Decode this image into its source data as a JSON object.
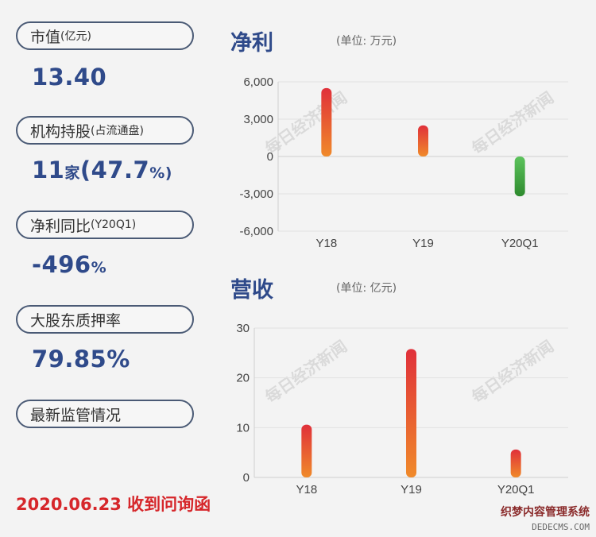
{
  "indicators": [
    {
      "label_main": "市值",
      "label_sub": "(亿元)",
      "value_main": "13.40",
      "value_unit": ""
    },
    {
      "label_main": "机构持股",
      "label_sub": "(占流通盘)",
      "value_main": "11",
      "value_unit": "家",
      "value_rest": "(47.7",
      "value_unit2": "%)"
    },
    {
      "label_main": "净利同比",
      "label_sub": "(Y20Q1)",
      "value_main": "-496",
      "value_unit": "%"
    },
    {
      "label_main": "大股东质押率",
      "label_sub": "",
      "value_main": "79.85%",
      "value_unit": ""
    },
    {
      "label_main": "最新监管情况",
      "label_sub": ""
    }
  ],
  "regulatory": {
    "date_text": "2020.06.23 收到问询函"
  },
  "watermark": "每日经济新闻",
  "brand": {
    "line1": "织梦内容管理系统",
    "line2": "DEDECMS.COM"
  },
  "colors": {
    "accent": "#2f4a8a",
    "red": "#d6262a",
    "bar_top": "#e0303a",
    "bar_bottom": "#f08a2a",
    "neg_top": "#5cc35c",
    "neg_bottom": "#2e8a2e"
  },
  "chart_data": [
    {
      "type": "bar",
      "title": "净利",
      "unit": "(单位: 万元)",
      "categories": [
        "Y18",
        "Y19",
        "Y20Q1"
      ],
      "values": [
        5500,
        2500,
        -3200
      ],
      "ylim": [
        -6000,
        6000
      ],
      "yticks": [
        "6,000",
        "3,000",
        "0",
        "-3,000",
        "-6,000"
      ],
      "ytick_values": [
        6000,
        3000,
        0,
        -3000,
        -6000
      ],
      "grid": true
    },
    {
      "type": "bar",
      "title": "营收",
      "unit": "(单位: 亿元)",
      "categories": [
        "Y18",
        "Y19",
        "Y20Q1"
      ],
      "values": [
        10.6,
        25.8,
        5.6
      ],
      "ylim": [
        0,
        30
      ],
      "yticks": [
        "30",
        "20",
        "10",
        "0"
      ],
      "ytick_values": [
        30,
        20,
        10,
        0
      ],
      "grid": true
    }
  ]
}
